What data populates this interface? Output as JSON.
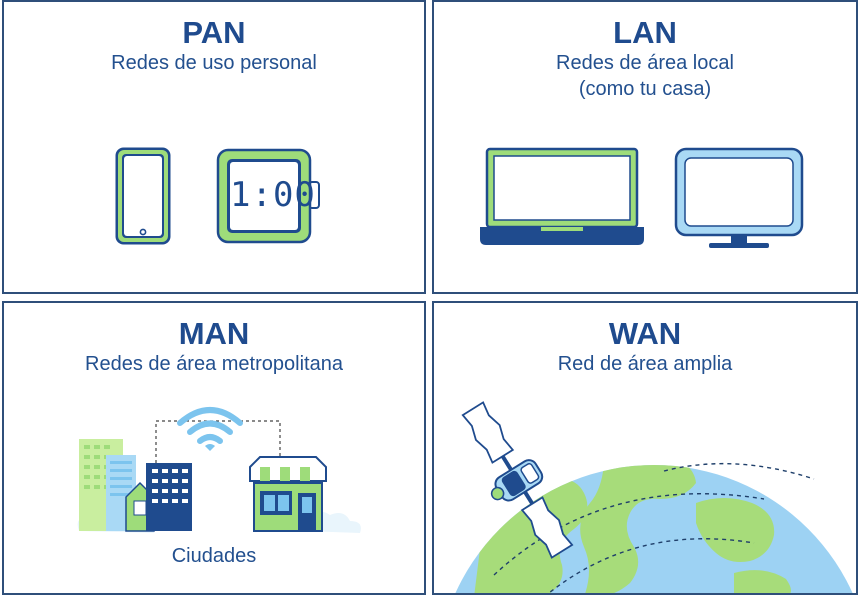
{
  "panels": {
    "pan": {
      "title": "PAN",
      "subtitle": "Redes de uso personal",
      "watch_time": "1:00"
    },
    "lan": {
      "title": "LAN",
      "subtitle": "Redes de área local",
      "subtitle2": "(como tu casa)"
    },
    "man": {
      "title": "MAN",
      "subtitle": "Redes de área metropolitana",
      "caption": "Ciudades"
    },
    "wan": {
      "title": "WAN",
      "subtitle": "Red de área amplia"
    }
  },
  "colors": {
    "navy": "#1f4b8e",
    "green": "#9edc7a",
    "light_green": "#c9ee9f",
    "light_blue": "#a9d9f5",
    "sky_blue": "#7cc4ee",
    "border": "#2f4f7a"
  }
}
